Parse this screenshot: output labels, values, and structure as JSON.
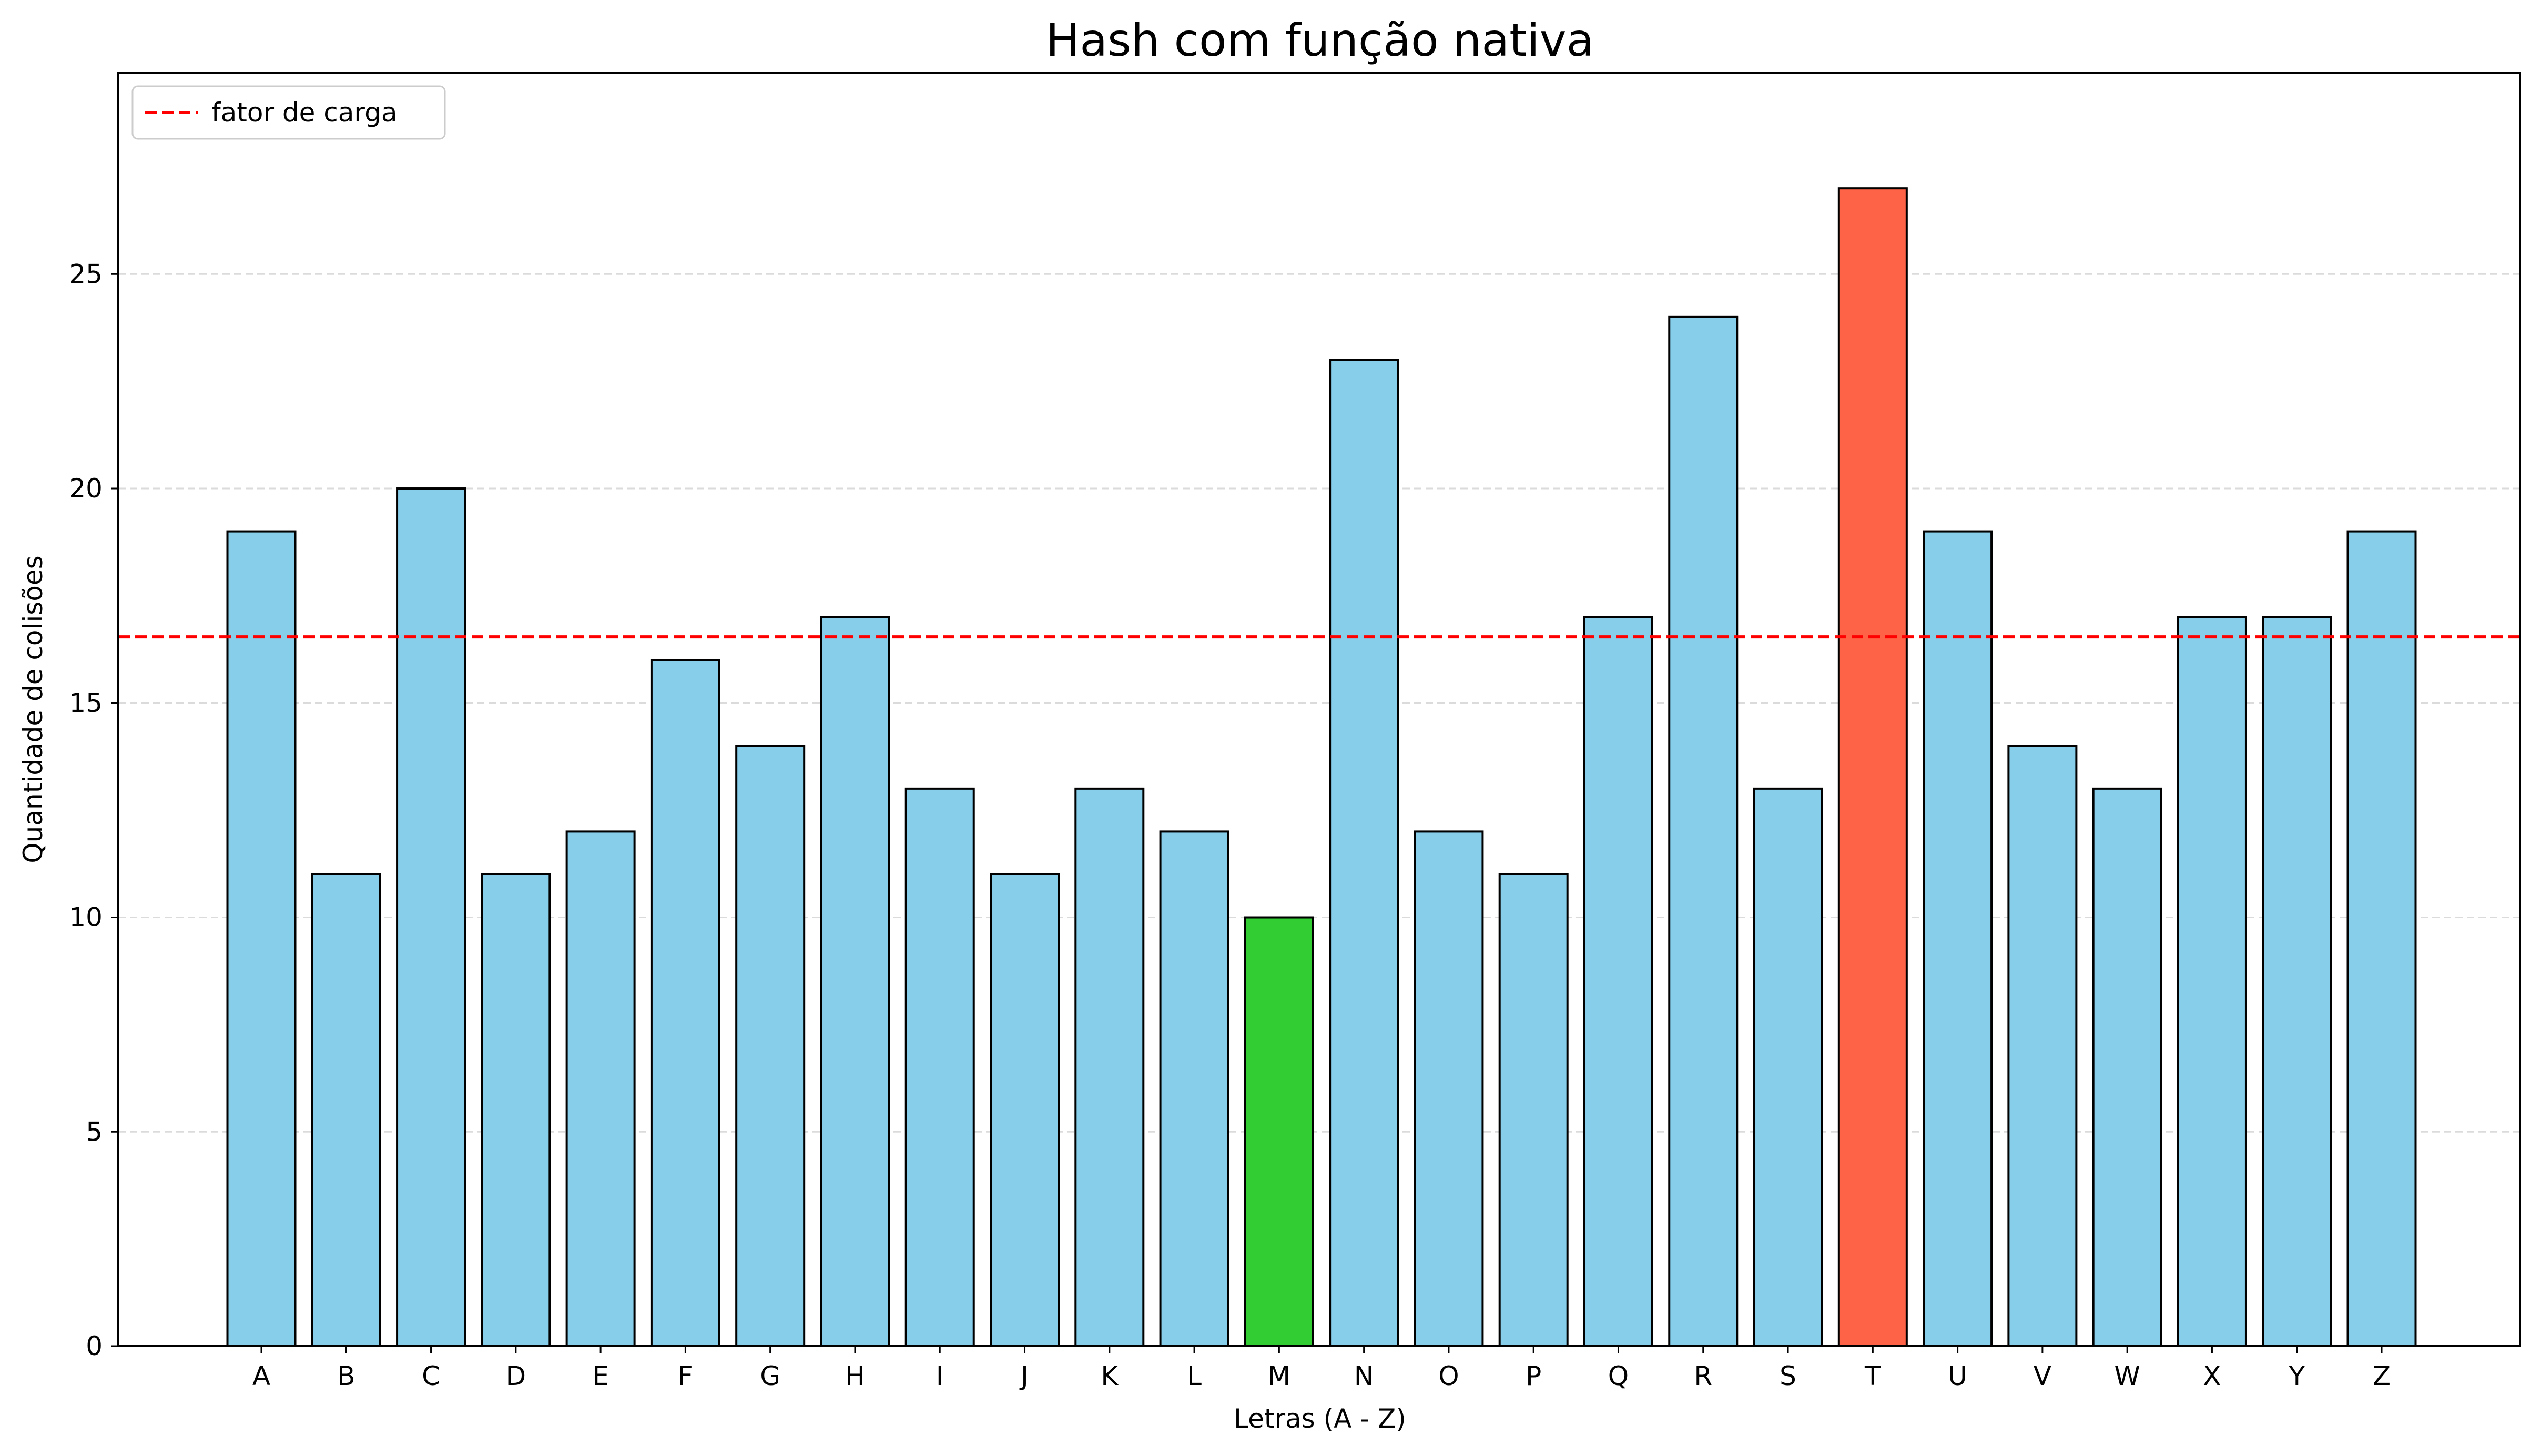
{
  "chart_data": {
    "type": "bar",
    "title": "Hash com função nativa",
    "xlabel": "Letras (A - Z)",
    "ylabel": "Quantidade de colisões",
    "categories": [
      "A",
      "B",
      "C",
      "D",
      "E",
      "F",
      "G",
      "H",
      "I",
      "J",
      "K",
      "L",
      "M",
      "N",
      "O",
      "P",
      "Q",
      "R",
      "S",
      "T",
      "U",
      "V",
      "W",
      "X",
      "Y",
      "Z"
    ],
    "values": [
      19,
      11,
      20,
      11,
      12,
      16,
      14,
      17,
      13,
      11,
      13,
      12,
      10,
      23,
      12,
      11,
      17,
      24,
      13,
      27,
      19,
      14,
      13,
      17,
      17,
      19
    ],
    "ylim": [
      0,
      29.7
    ],
    "yticks": [
      0,
      5,
      10,
      15,
      20,
      25
    ],
    "grid": "y-dashed",
    "reference_line": {
      "label": "fator de carga",
      "value": 16.54,
      "color": "#ff0000",
      "style": "dashed"
    },
    "legend_placement": "top-left",
    "colors": {
      "default_bar": "#87ceeb",
      "min_bar": "#32cd32",
      "max_bar": "#ff6347",
      "bar_edge": "#000000"
    },
    "highlighted": {
      "min": "M",
      "max": "T"
    }
  }
}
